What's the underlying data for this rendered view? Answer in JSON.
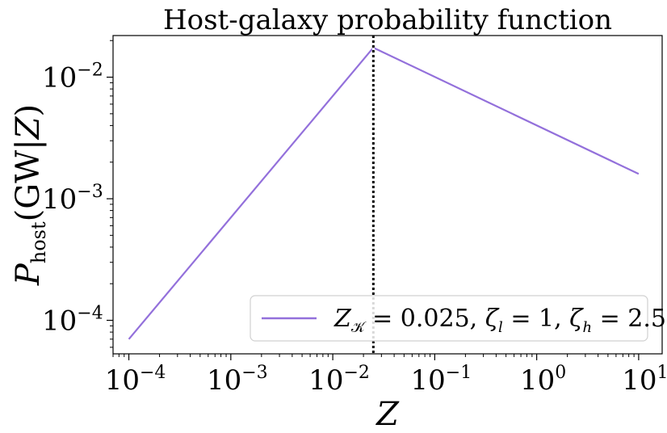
{
  "chart_data": {
    "type": "line",
    "title": "Host-galaxy probability function",
    "xlabel": "Z",
    "ylabel": "P_host(GW|Z)",
    "xscale": "log",
    "yscale": "log",
    "xlim": [
      7e-05,
      17
    ],
    "ylim": [
      5.3e-05,
      0.022
    ],
    "x_ticks": [
      {
        "value": 0.0001,
        "base": "10",
        "exp": "−4"
      },
      {
        "value": 0.001,
        "base": "10",
        "exp": "−3"
      },
      {
        "value": 0.01,
        "base": "10",
        "exp": "−2"
      },
      {
        "value": 0.1,
        "base": "10",
        "exp": "−1"
      },
      {
        "value": 1,
        "base": "10",
        "exp": "0"
      },
      {
        "value": 10,
        "base": "10",
        "exp": "1"
      }
    ],
    "y_ticks": [
      {
        "value": 0.0001,
        "base": "10",
        "exp": "−4"
      },
      {
        "value": 0.001,
        "base": "10",
        "exp": "−3"
      },
      {
        "value": 0.01,
        "base": "10",
        "exp": "−2"
      }
    ],
    "series": [
      {
        "name": "Z_K = 0.025, ζ_l = 1, ζ_h = 2.5",
        "color": "#9370DB",
        "x": [
          0.0001,
          0.025,
          10
        ],
        "y": [
          7e-05,
          0.0175,
          0.0016
        ]
      }
    ],
    "vline": {
      "x": 0.025,
      "color": "#000000",
      "style": "dotted"
    },
    "legend": {
      "position": "bottom-right",
      "text": "Z_K = 0.025, ζ_l = 1, ζ_h = 2.5"
    },
    "grid": false
  }
}
